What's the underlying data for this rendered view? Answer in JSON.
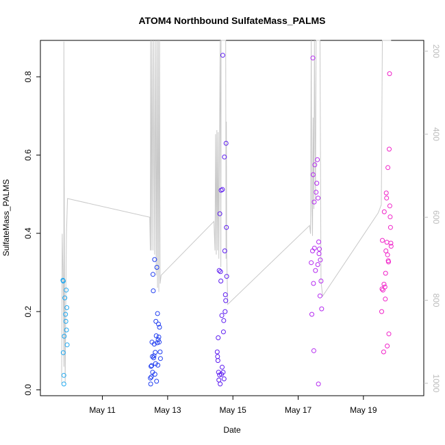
{
  "chart_data": {
    "type": "scatter",
    "title": "ATOM4 Northbound SulfateMass_PALMS",
    "xlabel": "Date",
    "ylabel": "SulfateMass_PALMS",
    "x_unit": "day of May",
    "xlim": [
      9.1,
      20.85
    ],
    "ylim": [
      -0.015,
      0.893
    ],
    "x_ticks": [
      {
        "value": 11,
        "label": "May 11"
      },
      {
        "value": 13,
        "label": "May 13"
      },
      {
        "value": 15,
        "label": "May 15"
      },
      {
        "value": 17,
        "label": "May 17"
      },
      {
        "value": 19,
        "label": "May 19"
      }
    ],
    "y_ticks": [
      {
        "value": 0.0,
        "label": "0.0"
      },
      {
        "value": 0.2,
        "label": "0.2"
      },
      {
        "value": 0.4,
        "label": "0.4"
      },
      {
        "value": 0.6,
        "label": "0.6"
      },
      {
        "value": 0.8,
        "label": "0.8"
      }
    ],
    "y2_ticks": [
      {
        "value": 200,
        "label": "200"
      },
      {
        "value": 400,
        "label": "400"
      },
      {
        "value": 600,
        "label": "600"
      },
      {
        "value": 800,
        "label": "800"
      },
      {
        "value": 1000,
        "label": "1000"
      }
    ],
    "y2lim": [
      1030,
      174
    ],
    "y2_reversed": true,
    "grid": false,
    "legend": "none",
    "line_color": "#c8c8c8",
    "marker_colors": [
      "#1fa8f0",
      "#1e3cf0",
      "#5a18f0",
      "#b428f0",
      "#f020c8"
    ],
    "series": [
      {
        "segment": 1,
        "color": "#1fa8f0",
        "points": [
          [
            9.79,
            0.28
          ],
          [
            9.8,
            0.278
          ],
          [
            9.8,
            0.095
          ],
          [
            9.82,
            0.037
          ],
          [
            9.82,
            0.015
          ],
          [
            9.83,
            0.137
          ],
          [
            9.85,
            0.235
          ],
          [
            9.87,
            0.193
          ],
          [
            9.88,
            0.175
          ],
          [
            9.89,
            0.255
          ],
          [
            9.9,
            0.153
          ],
          [
            9.91,
            0.21
          ],
          [
            9.92,
            0.115
          ]
        ]
      },
      {
        "segment": 2,
        "color": "#1e3cf0",
        "points": [
          [
            12.47,
            0.03
          ],
          [
            12.48,
            0.015
          ],
          [
            12.49,
            0.06
          ],
          [
            12.5,
            0.033
          ],
          [
            12.51,
            0.062
          ],
          [
            12.52,
            0.122
          ],
          [
            12.53,
            0.085
          ],
          [
            12.54,
            0.045
          ],
          [
            12.55,
            0.295
          ],
          [
            12.56,
            0.253
          ],
          [
            12.57,
            0.082
          ],
          [
            12.58,
            0.087
          ],
          [
            12.59,
            0.117
          ],
          [
            12.6,
            0.333
          ],
          [
            12.61,
            0.04
          ],
          [
            12.62,
            0.096
          ],
          [
            12.63,
            0.067
          ],
          [
            12.64,
            0.175
          ],
          [
            12.65,
            0.138
          ],
          [
            12.66,
            0.022
          ],
          [
            12.67,
            0.313
          ],
          [
            12.68,
            0.12
          ],
          [
            12.69,
            0.195
          ],
          [
            12.7,
            0.063
          ],
          [
            12.71,
            0.128
          ],
          [
            12.72,
            0.168
          ],
          [
            12.73,
            0.135
          ],
          [
            12.74,
            0.122
          ],
          [
            12.75,
            0.16
          ],
          [
            12.77,
            0.097
          ],
          [
            12.78,
            0.08
          ]
        ]
      },
      {
        "segment": 3,
        "color": "#5a18f0",
        "points": [
          [
            14.52,
            0.097
          ],
          [
            14.53,
            0.085
          ],
          [
            14.54,
            0.075
          ],
          [
            14.55,
            0.133
          ],
          [
            14.56,
            0.045
          ],
          [
            14.57,
            0.025
          ],
          [
            14.58,
            0.305
          ],
          [
            14.59,
            0.038
          ],
          [
            14.6,
            0.45
          ],
          [
            14.61,
            0.015
          ],
          [
            14.62,
            0.302
          ],
          [
            14.63,
            0.278
          ],
          [
            14.64,
            0.51
          ],
          [
            14.65,
            0.04
          ],
          [
            14.66,
            0.19
          ],
          [
            14.67,
            0.058
          ],
          [
            14.68,
            0.512
          ],
          [
            14.69,
            0.855
          ],
          [
            14.7,
            0.045
          ],
          [
            14.71,
            0.148
          ],
          [
            14.72,
            0.177
          ],
          [
            14.73,
            0.028
          ],
          [
            14.74,
            0.595
          ],
          [
            14.75,
            0.355
          ],
          [
            14.76,
            0.2
          ],
          [
            14.77,
            0.243
          ],
          [
            14.78,
            0.228
          ],
          [
            14.79,
            0.63
          ],
          [
            14.8,
            0.415
          ],
          [
            14.81,
            0.29
          ]
        ]
      },
      {
        "segment": 4,
        "color": "#b428f0",
        "points": [
          [
            17.4,
            0.325
          ],
          [
            17.42,
            0.193
          ],
          [
            17.44,
            0.355
          ],
          [
            17.45,
            0.848
          ],
          [
            17.46,
            0.55
          ],
          [
            17.47,
            0.272
          ],
          [
            17.48,
            0.1
          ],
          [
            17.49,
            0.48
          ],
          [
            17.5,
            0.362
          ],
          [
            17.51,
            0.575
          ],
          [
            17.53,
            0.305
          ],
          [
            17.55,
            0.505
          ],
          [
            17.57,
            0.528
          ],
          [
            17.59,
            0.588
          ],
          [
            17.6,
            0.32
          ],
          [
            17.61,
            0.49
          ],
          [
            17.62,
            0.015
          ],
          [
            17.63,
            0.378
          ],
          [
            17.64,
            0.348
          ],
          [
            17.65,
            0.36
          ],
          [
            17.67,
            0.24
          ],
          [
            17.68,
            0.332
          ],
          [
            17.7,
            0.278
          ],
          [
            17.72,
            0.207
          ]
        ]
      },
      {
        "segment": 5,
        "color": "#f020c8",
        "points": [
          [
            19.56,
            0.2
          ],
          [
            19.57,
            0.258
          ],
          [
            19.58,
            0.382
          ],
          [
            19.6,
            0.255
          ],
          [
            19.62,
            0.097
          ],
          [
            19.63,
            0.27
          ],
          [
            19.64,
            0.455
          ],
          [
            19.66,
            0.263
          ],
          [
            19.67,
            0.232
          ],
          [
            19.68,
            0.298
          ],
          [
            19.69,
            0.355
          ],
          [
            19.7,
            0.503
          ],
          [
            19.71,
            0.49
          ],
          [
            19.72,
            0.377
          ],
          [
            19.73,
            0.112
          ],
          [
            19.74,
            0.345
          ],
          [
            19.75,
            0.568
          ],
          [
            19.76,
            0.33
          ],
          [
            19.77,
            0.327
          ],
          [
            19.78,
            0.143
          ],
          [
            19.79,
            0.615
          ],
          [
            19.8,
            0.808
          ],
          [
            19.81,
            0.47
          ],
          [
            19.82,
            0.442
          ],
          [
            19.83,
            0.415
          ],
          [
            19.84,
            0.375
          ],
          [
            19.85,
            0.367
          ]
        ]
      }
    ],
    "altitude_trace": [
      [
        9.75,
        1000
      ],
      [
        9.77,
        640
      ],
      [
        9.79,
        730
      ],
      [
        9.81,
        840
      ],
      [
        9.82,
        960
      ],
      [
        9.82,
        177
      ],
      [
        9.84,
        800
      ],
      [
        9.86,
        1000
      ],
      [
        9.88,
        780
      ],
      [
        9.9,
        640
      ],
      [
        9.93,
        555
      ],
      [
        12.45,
        600
      ],
      [
        12.47,
        680
      ],
      [
        12.48,
        174
      ],
      [
        12.5,
        680
      ],
      [
        12.52,
        174
      ],
      [
        12.55,
        680
      ],
      [
        12.57,
        174
      ],
      [
        12.6,
        690
      ],
      [
        12.62,
        174
      ],
      [
        12.65,
        740
      ],
      [
        12.67,
        174
      ],
      [
        12.69,
        770
      ],
      [
        12.71,
        174
      ],
      [
        12.73,
        780
      ],
      [
        12.75,
        174
      ],
      [
        12.77,
        760
      ],
      [
        12.8,
        740
      ],
      [
        14.42,
        610
      ],
      [
        14.45,
        680
      ],
      [
        14.47,
        400
      ],
      [
        14.49,
        690
      ],
      [
        14.51,
        390
      ],
      [
        14.53,
        680
      ],
      [
        14.55,
        395
      ],
      [
        14.57,
        700
      ],
      [
        14.59,
        405
      ],
      [
        14.61,
        174
      ],
      [
        14.62,
        420
      ],
      [
        14.63,
        720
      ],
      [
        14.64,
        174
      ],
      [
        14.66,
        174
      ],
      [
        14.68,
        174
      ],
      [
        14.7,
        174
      ],
      [
        14.72,
        174
      ],
      [
        14.74,
        174
      ],
      [
        14.76,
        174
      ],
      [
        14.78,
        174
      ],
      [
        14.79,
        700
      ],
      [
        14.8,
        370
      ],
      [
        14.81,
        690
      ],
      [
        14.84,
        810
      ],
      [
        17.35,
        620
      ],
      [
        17.38,
        640
      ],
      [
        17.4,
        174
      ],
      [
        17.42,
        570
      ],
      [
        17.44,
        645
      ],
      [
        17.46,
        360
      ],
      [
        17.48,
        580
      ],
      [
        17.5,
        174
      ],
      [
        17.53,
        560
      ],
      [
        17.55,
        174
      ],
      [
        17.58,
        174
      ],
      [
        17.6,
        174
      ],
      [
        17.63,
        174
      ],
      [
        17.65,
        174
      ],
      [
        17.67,
        174
      ],
      [
        17.7,
        755
      ],
      [
        17.75,
        790
      ],
      [
        19.45,
        590
      ],
      [
        19.5,
        580
      ],
      [
        19.55,
        570
      ],
      [
        19.58,
        174
      ],
      [
        19.6,
        174
      ],
      [
        19.63,
        174
      ],
      [
        19.66,
        174
      ],
      [
        19.68,
        174
      ],
      [
        19.7,
        174
      ],
      [
        19.73,
        174
      ],
      [
        19.75,
        174
      ],
      [
        19.78,
        174
      ],
      [
        19.8,
        174
      ],
      [
        19.83,
        174
      ],
      [
        19.85,
        174
      ]
    ]
  }
}
